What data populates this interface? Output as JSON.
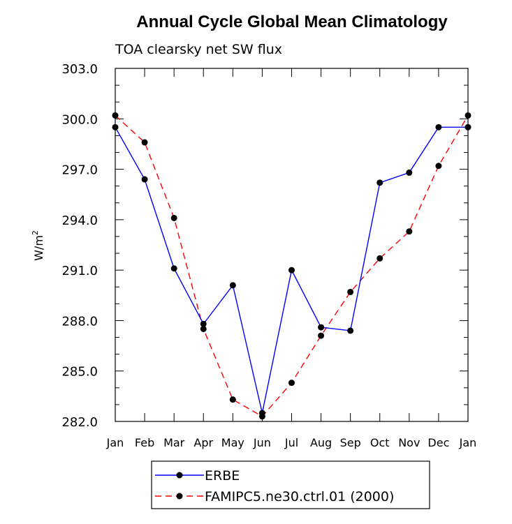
{
  "chart_data": {
    "type": "line",
    "title": "Annual Cycle Global Mean Climatology",
    "subtitle": "TOA clearsky net SW flux",
    "ylabel": "W/m",
    "ylabel_superscript": "2",
    "ylim": [
      282.0,
      303.0
    ],
    "y_tick_labels": [
      "282.0",
      "285.0",
      "288.0",
      "291.0",
      "294.0",
      "297.0",
      "300.0",
      "303.0"
    ],
    "categories": [
      "Jan",
      "Feb",
      "Mar",
      "Apr",
      "May",
      "Jun",
      "Jul",
      "Aug",
      "Sep",
      "Oct",
      "Nov",
      "Dec",
      "Jan"
    ],
    "grid": false,
    "legend_position": "bottom",
    "series": [
      {
        "name": "ERBE",
        "color": "#0000ff",
        "dash": "solid",
        "values": [
          299.5,
          296.4,
          291.1,
          287.8,
          290.1,
          282.5,
          291.0,
          287.6,
          287.4,
          296.2,
          296.8,
          299.5,
          299.5
        ]
      },
      {
        "name": "FAMIPC5.ne30.ctrl.01 (2000)",
        "color": "#ff0000",
        "dash": "dashed",
        "values": [
          300.2,
          298.6,
          294.1,
          287.5,
          283.3,
          282.3,
          284.3,
          287.1,
          289.7,
          291.7,
          293.3,
          297.2,
          300.2
        ]
      }
    ]
  }
}
